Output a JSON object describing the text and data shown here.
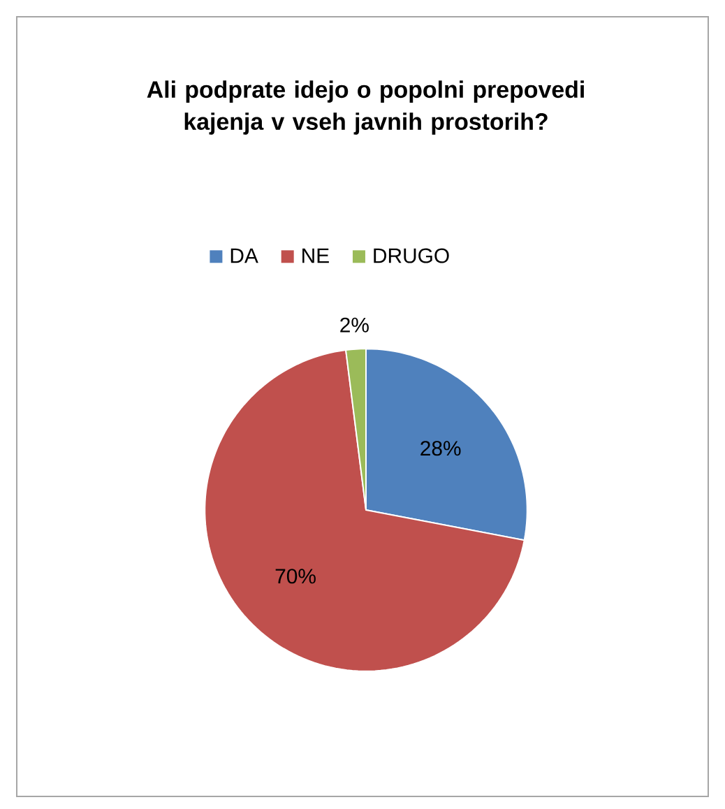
{
  "chart_data": {
    "type": "pie",
    "title": "Ali podprate  idejo o popolni prepovedi kajenja v vseh javnih prostorih?",
    "categories": [
      "DA",
      "NE",
      "DRUGO"
    ],
    "values": [
      28,
      70,
      2
    ],
    "colors": [
      "#4f81bd",
      "#c0504d",
      "#9bbb59"
    ],
    "value_labels": [
      "28%",
      "70%",
      "2%"
    ],
    "legend": "top"
  }
}
